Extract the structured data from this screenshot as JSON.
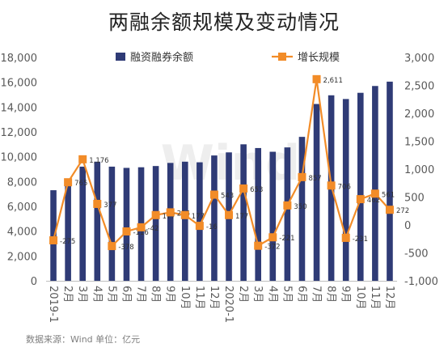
{
  "colors": {
    "bar": "#2F3B76",
    "line": "#F28C28",
    "axis_text": "#595959",
    "gridline": "#e6e6e6",
    "label": "#333333"
  },
  "chart_data": {
    "type": "bar+line",
    "title": "两融余额规模及变动情况",
    "categories": [
      "2019-1月",
      "2月",
      "3月",
      "4月",
      "5月",
      "6月",
      "7月",
      "8月",
      "9月",
      "10月",
      "11月",
      "12月",
      "2020-1月",
      "2月",
      "3月",
      "4月",
      "5月",
      "6月",
      "7月",
      "8月",
      "9月",
      "10月",
      "11月",
      "12月"
    ],
    "x_tick_labels": [
      "2019-1",
      "2月",
      "3月",
      "4月",
      "5月",
      "6月",
      "7月",
      "8月",
      "9月",
      "10月",
      "11月",
      "12月",
      "2020-1",
      "2月",
      "3月",
      "4月",
      "5月",
      "6月",
      "7月",
      "8月",
      "9月",
      "10月",
      "11月",
      "12月"
    ],
    "legend_position": "top",
    "grid": false,
    "series": [
      {
        "name": "融资融券余额",
        "type": "bar",
        "axis": "left",
        "values": [
          7300,
          8050,
          9200,
          9600,
          9200,
          9100,
          9150,
          9250,
          9500,
          9600,
          9550,
          10100,
          10350,
          11000,
          10700,
          10400,
          10750,
          11600,
          14250,
          14950,
          14650,
          15150,
          15700,
          16050
        ]
      },
      {
        "name": "增长规模",
        "type": "line",
        "axis": "right",
        "values": [
          -275,
          765,
          1176,
          377,
          -378,
          -116,
          -42,
          177,
          226,
          177,
          -16,
          543,
          177,
          653,
          -372,
          -221,
          350,
          857,
          2611,
          706,
          -231,
          462,
          561,
          272
        ],
        "data_labels": [
          "-275",
          "765",
          "1,176",
          "377",
          "-378",
          "-116",
          "-42",
          "177",
          "226",
          "177",
          "-16",
          "543",
          "177",
          "653",
          "-372",
          "-221",
          "350",
          "857",
          "2,611",
          "706",
          "-231",
          "462",
          "561",
          "272"
        ]
      }
    ],
    "y_left": {
      "min": 0,
      "max": 18000,
      "ticks": [
        "0",
        "2,000",
        "4,000",
        "6,000",
        "8,000",
        "10,000",
        "12,000",
        "14,000",
        "16,000",
        "18,000"
      ]
    },
    "y_right": {
      "min": -1000,
      "max": 3000,
      "ticks": [
        "-1,000",
        "-500",
        "0",
        "500",
        "1,000",
        "1,500",
        "2,000",
        "2,500",
        "3,000"
      ]
    }
  },
  "footer": {
    "source_text": "数据来源：Wind    单位：亿元"
  },
  "watermark": "Wind"
}
